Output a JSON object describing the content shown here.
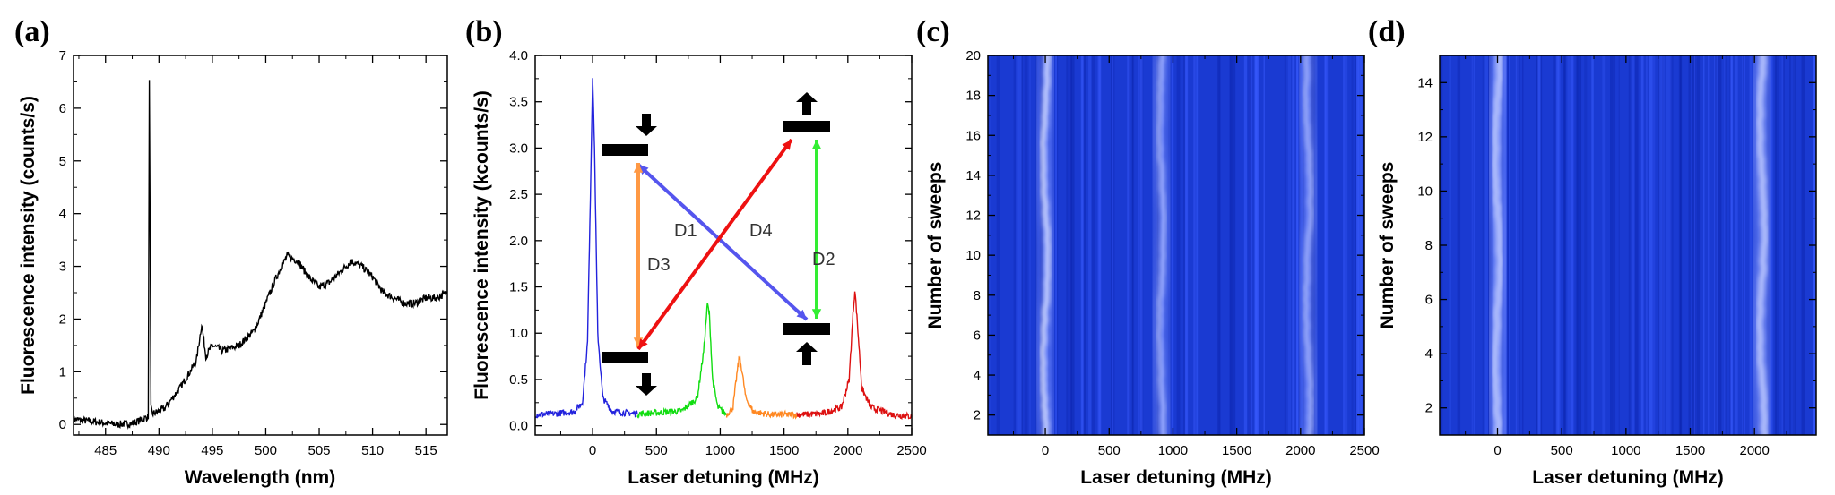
{
  "panel_labels": [
    "(a)",
    "(b)",
    "(c)",
    "(d)"
  ],
  "chart_data": [
    {
      "panel": "(a)",
      "type": "line",
      "xlabel": "Wavelength (nm)",
      "ylabel": "Fluorescence intensity (counts/s)",
      "xlim": [
        482,
        517
      ],
      "ylim": [
        -0.2,
        7
      ],
      "xticks": [
        485,
        490,
        495,
        500,
        505,
        510,
        515
      ],
      "yticks": [
        0,
        1,
        2,
        3,
        4,
        5,
        6,
        7
      ],
      "color": "#000000",
      "series": [
        {
          "x": [
            482,
            484,
            486,
            487.5,
            488.5,
            489.0,
            489.1,
            489.25,
            489.4,
            490.5,
            492,
            493.5,
            494,
            494.4,
            495,
            496,
            497.5,
            499,
            500,
            501,
            502,
            503,
            504,
            505,
            506,
            507,
            508,
            509,
            510,
            511,
            512,
            513,
            514,
            515,
            516,
            517
          ],
          "y": [
            0.1,
            0.05,
            0.0,
            0.02,
            0.1,
            0.15,
            6.6,
            0.3,
            0.2,
            0.3,
            0.7,
            1.2,
            1.9,
            1.3,
            1.5,
            1.4,
            1.5,
            1.8,
            2.3,
            2.8,
            3.2,
            3.1,
            2.8,
            2.6,
            2.7,
            2.9,
            3.1,
            3.0,
            2.8,
            2.5,
            2.4,
            2.3,
            2.3,
            2.4,
            2.4,
            2.5
          ]
        }
      ]
    },
    {
      "panel": "(b)",
      "type": "line",
      "xlabel": "Laser detuning (MHz)",
      "ylabel": "Fluorescence intensity (kcounts/s)",
      "xlim": [
        -450,
        2500
      ],
      "ylim": [
        -0.1,
        4.0
      ],
      "xticks": [
        0,
        500,
        1000,
        1500,
        2000,
        2500
      ],
      "yticks": [
        0.0,
        0.5,
        1.0,
        1.5,
        2.0,
        2.5,
        3.0,
        3.5,
        4.0
      ],
      "ytick_labels": [
        "0.0",
        "0.5",
        "1.0",
        "1.5",
        "2.0",
        "2.5",
        "3.0",
        "3.5",
        "4.0"
      ],
      "series": [
        {
          "color": "#2222dd",
          "x": [
            -450,
            -300,
            -150,
            -80,
            -40,
            -10,
            0,
            15,
            40,
            80,
            150,
            250,
            350
          ],
          "y": [
            0.12,
            0.13,
            0.15,
            0.25,
            0.9,
            3.0,
            3.78,
            3.0,
            1.0,
            0.3,
            0.16,
            0.14,
            0.13
          ]
        },
        {
          "color": "#11dd11",
          "x": [
            350,
            500,
            700,
            820,
            870,
            900,
            915,
            940,
            980,
            1050
          ],
          "y": [
            0.13,
            0.14,
            0.16,
            0.3,
            0.8,
            1.32,
            1.2,
            0.5,
            0.2,
            0.12
          ]
        },
        {
          "color": "#ff8822",
          "x": [
            1050,
            1100,
            1130,
            1150,
            1170,
            1200,
            1260,
            1400,
            1600
          ],
          "y": [
            0.12,
            0.2,
            0.55,
            0.75,
            0.6,
            0.3,
            0.15,
            0.12,
            0.12
          ]
        },
        {
          "color": "#dd1111",
          "x": [
            1600,
            1800,
            1950,
            2010,
            2040,
            2055,
            2075,
            2110,
            2180,
            2350,
            2500
          ],
          "y": [
            0.12,
            0.13,
            0.2,
            0.5,
            1.2,
            1.47,
            1.1,
            0.4,
            0.2,
            0.12,
            0.1
          ]
        }
      ],
      "annotations": [
        "D1",
        "D2",
        "D3",
        "D4"
      ],
      "level_diagram_colors": {
        "D1": "#5555ee",
        "D2": "#33ee33",
        "D3": "#ff9944",
        "D4": "#ee1111"
      }
    },
    {
      "panel": "(c)",
      "type": "heatmap",
      "xlabel": "Laser detuning (MHz)",
      "ylabel": "Number of sweeps",
      "xlim": [
        -450,
        2500
      ],
      "ylim": [
        1,
        20
      ],
      "xticks": [
        0,
        500,
        1000,
        1500,
        2000,
        2500
      ],
      "yticks": [
        2,
        4,
        6,
        8,
        10,
        12,
        14,
        16,
        18,
        20
      ],
      "background_color": "#1a3ad2",
      "bright_lines_mhz": [
        0,
        910,
        2060
      ]
    },
    {
      "panel": "(d)",
      "type": "heatmap",
      "xlabel": "Laser detuning (MHz)",
      "ylabel": "Number of sweeps",
      "xlim": [
        -450,
        2480
      ],
      "ylim": [
        1,
        15
      ],
      "xticks": [
        0,
        500,
        1000,
        1500,
        2000
      ],
      "yticks": [
        2,
        4,
        6,
        8,
        10,
        12,
        14
      ],
      "background_color": "#1a3ad2",
      "bright_lines_mhz": [
        0,
        2060
      ]
    }
  ]
}
